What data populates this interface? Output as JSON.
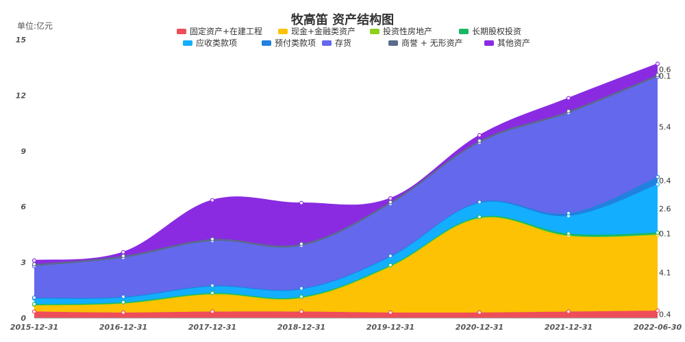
{
  "chart_data": {
    "type": "area",
    "title": "牧高笛 资产结构图",
    "ylabel": "单位:亿元",
    "ylim": [
      0,
      15
    ],
    "yticks": [
      0,
      3,
      6,
      9,
      12,
      15
    ],
    "x": [
      "2015-12-31",
      "2016-12-31",
      "2017-12-31",
      "2018-12-31",
      "2019-12-31",
      "2020-12-31",
      "2021-12-31",
      "2022-06-30"
    ],
    "legend_position": "top-center",
    "stacked": true,
    "series": [
      {
        "name": "固定资产+在建工程",
        "color": "#ee4d5a",
        "values": [
          0.35,
          0.3,
          0.35,
          0.35,
          0.3,
          0.3,
          0.35,
          0.4
        ],
        "end_label": "0.4"
      },
      {
        "name": "现金+金融类资产",
        "color": "#fcc203",
        "values": [
          0.35,
          0.5,
          0.95,
          0.75,
          2.5,
          5.1,
          4.1,
          4.1
        ],
        "end_label": "4.1"
      },
      {
        "name": "投资性房地产",
        "color": "#8dd01d",
        "values": [
          0,
          0,
          0,
          0,
          0,
          0,
          0,
          0
        ],
        "end_label": ""
      },
      {
        "name": "长期股权投资",
        "color": "#18b865",
        "values": [
          0.05,
          0.05,
          0.05,
          0.05,
          0.05,
          0.05,
          0.1,
          0.1
        ],
        "end_label": "0.1"
      },
      {
        "name": "应收类款项",
        "color": "#14aeff",
        "values": [
          0.3,
          0.25,
          0.35,
          0.4,
          0.45,
          0.75,
          0.95,
          2.6
        ],
        "end_label": "2.6"
      },
      {
        "name": "预付类款项",
        "color": "#2181df",
        "values": [
          0.05,
          0.05,
          0.05,
          0.05,
          0.05,
          0.05,
          0.15,
          0.4
        ],
        "end_label": "0.4"
      },
      {
        "name": "存货",
        "color": "#6468ec",
        "values": [
          1.7,
          2.1,
          2.4,
          2.3,
          2.8,
          3.2,
          5.4,
          5.4
        ],
        "end_label": "5.4"
      },
      {
        "name": "商誉 + 无形资产",
        "color": "#5a6b8c",
        "values": [
          0.1,
          0.1,
          0.1,
          0.1,
          0.1,
          0.1,
          0.1,
          0.1
        ],
        "end_label": "0.1"
      },
      {
        "name": "其他资产",
        "color": "#8a2be2",
        "values": [
          0.2,
          0.2,
          2.1,
          2.2,
          0.2,
          0.3,
          0.7,
          0.6
        ],
        "end_label": "0.6"
      }
    ]
  }
}
